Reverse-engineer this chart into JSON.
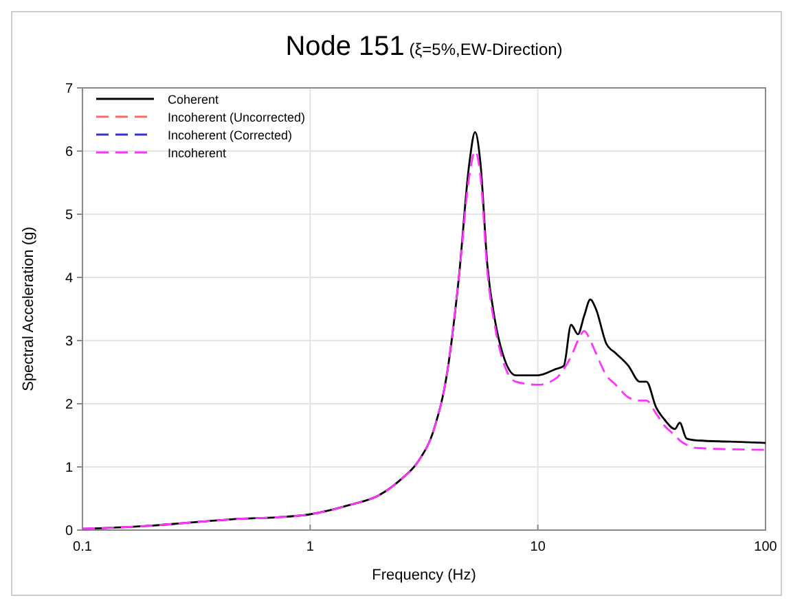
{
  "chart_data": {
    "type": "line",
    "title": "Node 151",
    "subtitle": "(ξ=5%,EW-Direction)",
    "xlabel": "Frequency (Hz)",
    "ylabel": "Spectral Acceleration (g)",
    "log": "x",
    "grid": true,
    "legend": "top left",
    "xlim": [
      0.1,
      100
    ],
    "xticks": [
      0.1,
      1,
      10,
      100
    ],
    "ylim": [
      0,
      7
    ],
    "yticks": [
      0,
      1,
      2,
      3,
      4,
      5,
      6,
      7
    ],
    "x": [
      0.1,
      0.2,
      0.3,
      0.5,
      0.7,
      1,
      1.5,
      2,
      2.5,
      3,
      3.5,
      4,
      4.5,
      5,
      5.3,
      5.6,
      6,
      6.5,
      7,
      8,
      10,
      12,
      13,
      14,
      15,
      16,
      17,
      18,
      20,
      22,
      25,
      28,
      30,
      33,
      36,
      40,
      42,
      45,
      50,
      70,
      100
    ],
    "series": [
      {
        "name": "Coherent",
        "color": "#000000",
        "line_style": "solid",
        "values": [
          0.02,
          0.07,
          0.12,
          0.18,
          0.2,
          0.25,
          0.4,
          0.55,
          0.8,
          1.1,
          1.6,
          2.5,
          4.0,
          5.8,
          6.3,
          5.8,
          4.2,
          3.3,
          2.8,
          2.45,
          2.45,
          2.55,
          2.6,
          3.25,
          3.1,
          3.4,
          3.65,
          3.5,
          2.95,
          2.8,
          2.6,
          2.35,
          2.35,
          1.95,
          1.75,
          1.6,
          1.7,
          1.45,
          1.42,
          1.4,
          1.38
        ]
      },
      {
        "name": "Incoherent (Uncorrected)",
        "color": "#ff6666",
        "line_style": "dashed",
        "values": [
          null,
          null,
          null,
          null,
          null,
          null,
          null,
          null,
          null,
          null,
          null,
          null,
          null,
          null,
          null,
          null,
          null,
          null,
          null,
          null,
          null,
          null,
          null,
          null,
          null,
          null,
          null,
          null,
          null,
          null,
          null,
          null,
          null,
          null,
          null,
          null,
          null,
          null,
          null,
          null,
          null
        ]
      },
      {
        "name": "Incoherent (Corrected)",
        "color": "#3333cc",
        "line_style": "dashed",
        "values": [
          null,
          null,
          null,
          null,
          null,
          null,
          null,
          null,
          null,
          null,
          null,
          null,
          null,
          null,
          null,
          null,
          null,
          null,
          null,
          null,
          null,
          null,
          null,
          null,
          null,
          null,
          null,
          null,
          null,
          null,
          null,
          null,
          null,
          null,
          null,
          null,
          null,
          null,
          null,
          null,
          null
        ]
      },
      {
        "name": "Incoherent",
        "color": "#ff33ff",
        "line_style": "dashed",
        "values": [
          0.02,
          0.07,
          0.12,
          0.18,
          0.2,
          0.25,
          0.4,
          0.55,
          0.8,
          1.1,
          1.6,
          2.5,
          4.0,
          5.6,
          6.0,
          5.6,
          4.1,
          3.2,
          2.7,
          2.35,
          2.3,
          2.4,
          2.55,
          2.75,
          3.0,
          3.15,
          3.0,
          2.8,
          2.45,
          2.3,
          2.1,
          2.05,
          2.05,
          1.85,
          1.65,
          1.5,
          1.42,
          1.35,
          1.3,
          1.28,
          1.27
        ]
      }
    ]
  }
}
